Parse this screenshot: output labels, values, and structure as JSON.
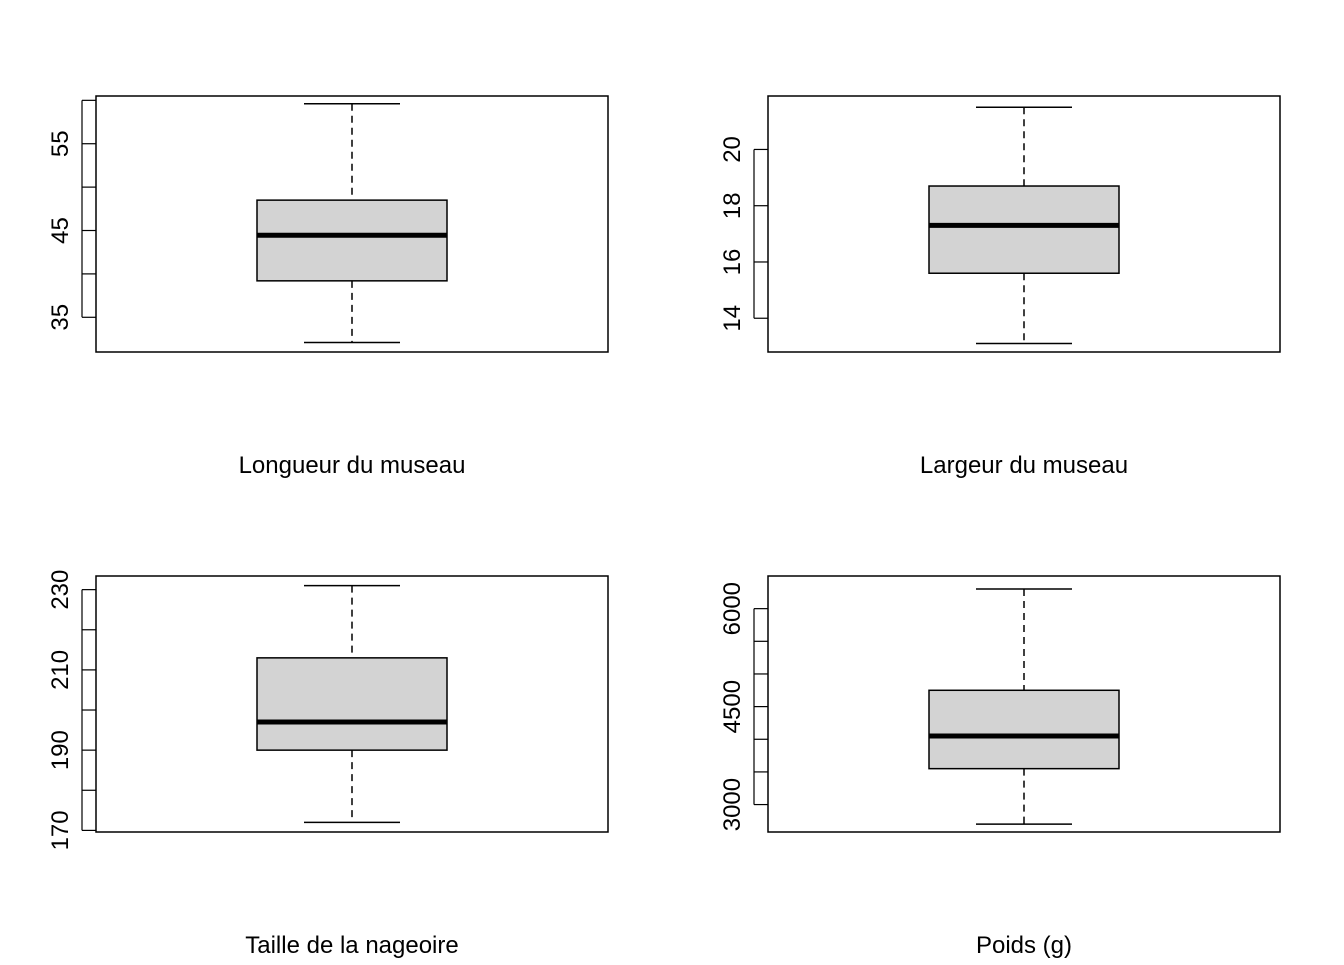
{
  "chart_data": [
    {
      "type": "boxplot",
      "xlabel": "Longueur du museau",
      "ylim": [
        31.0,
        60.5
      ],
      "ticks": [
        35,
        40,
        45,
        50,
        55,
        60
      ],
      "tick_labels": [
        "35",
        "",
        "45",
        "",
        "55",
        ""
      ],
      "stats": {
        "whisker_low": 32.1,
        "q1": 39.2,
        "median": 44.45,
        "q3": 48.5,
        "whisker_high": 59.6
      }
    },
    {
      "type": "boxplot",
      "xlabel": "Largeur du museau",
      "ylim": [
        12.8,
        21.9
      ],
      "ticks": [
        14,
        16,
        18,
        20
      ],
      "tick_labels": [
        "14",
        "16",
        "18",
        "20"
      ],
      "stats": {
        "whisker_low": 13.1,
        "q1": 15.6,
        "median": 17.3,
        "q3": 18.7,
        "whisker_high": 21.5
      }
    },
    {
      "type": "boxplot",
      "xlabel": "Taille de la nageoire",
      "ylim": [
        169.6,
        233.4
      ],
      "ticks": [
        170,
        180,
        190,
        200,
        210,
        220,
        230
      ],
      "tick_labels": [
        "170",
        "",
        "190",
        "",
        "210",
        "",
        "230"
      ],
      "stats": {
        "whisker_low": 172,
        "q1": 190,
        "median": 197,
        "q3": 213,
        "whisker_high": 231
      }
    },
    {
      "type": "boxplot",
      "xlabel": "Poids (g)",
      "ylim": [
        2580,
        6500
      ],
      "ticks": [
        3000,
        3500,
        4000,
        4500,
        5000,
        5500,
        6000
      ],
      "tick_labels": [
        "3000",
        "",
        "",
        "4500",
        "",
        "",
        "6000"
      ],
      "stats": {
        "whisker_low": 2700,
        "q1": 3550,
        "median": 4050,
        "q3": 4750,
        "whisker_high": 6300
      }
    }
  ],
  "colors": {
    "box_fill": "#d3d3d3",
    "stroke": "#000000"
  }
}
